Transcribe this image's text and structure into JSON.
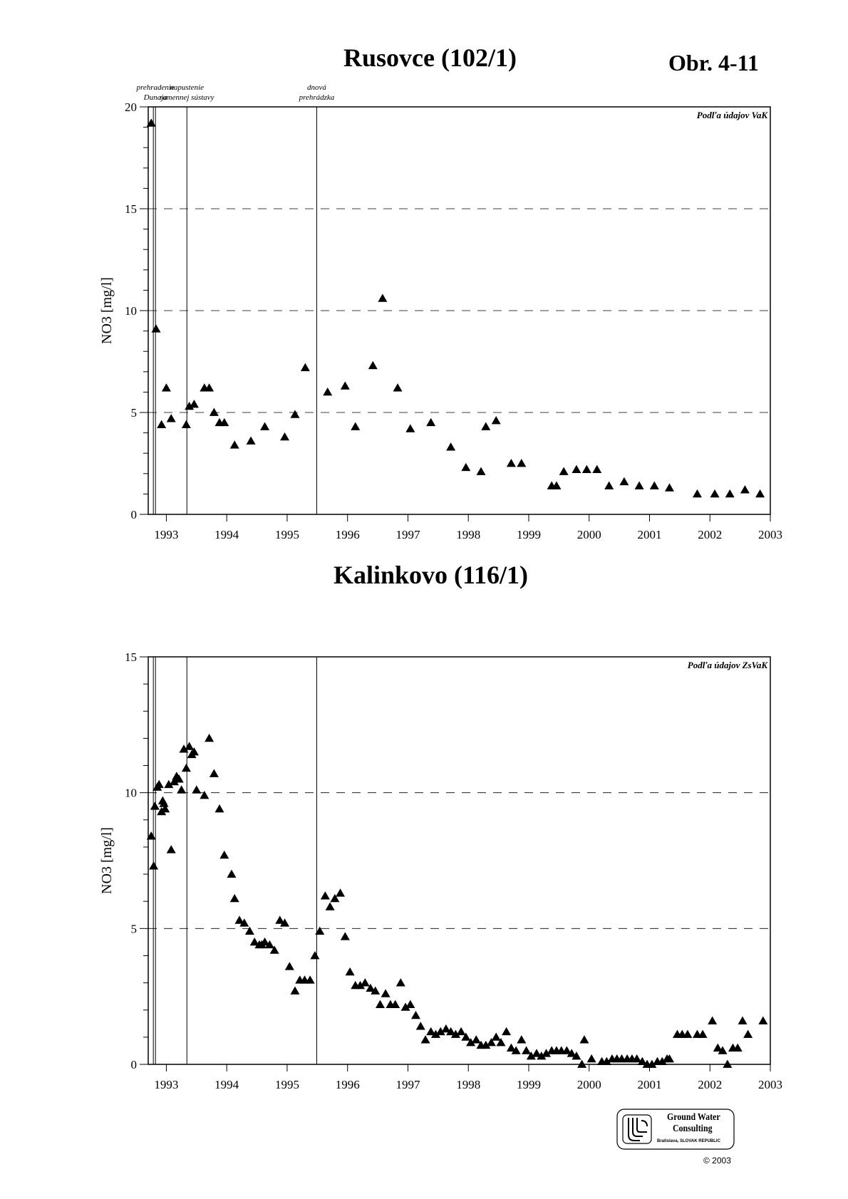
{
  "figure_label": "Obr. 4-11",
  "copyright": "© 2003",
  "logo": {
    "line1": "Ground Water",
    "line2": "Consulting",
    "line3": "Bratislava, SLOVAK REPUBLIC",
    "icon": "gwc-logo-icon"
  },
  "events": [
    {
      "label1": "prehradenie",
      "label2": "Dunaja",
      "x": 1992.82
    },
    {
      "label1": "napustenie",
      "label2": "ramennej sústavy",
      "x": 1993.34
    },
    {
      "label1": "dnová",
      "label2": "prehrádzka",
      "x": 1995.49
    }
  ],
  "chart_data": [
    {
      "type": "scatter",
      "title": "Rusovce (102/1)",
      "ylabel": "NO3 [mg/l]",
      "xlabel": "",
      "source_note": "Podľa údajov VaK",
      "xlim": [
        1992.7,
        2003.0
      ],
      "ylim": [
        0,
        20
      ],
      "yticks": [
        0,
        5,
        10,
        15,
        20
      ],
      "xticks": [
        1993,
        1994,
        1995,
        1996,
        1997,
        1998,
        1999,
        2000,
        2001,
        2002,
        2003
      ],
      "grid": "dashed horizontal at 5, 10, 15",
      "marker": "triangle",
      "points": [
        [
          1992.75,
          19.2
        ],
        [
          1992.83,
          9.1
        ],
        [
          1992.92,
          4.4
        ],
        [
          1993.0,
          6.2
        ],
        [
          1993.08,
          4.7
        ],
        [
          1993.33,
          4.4
        ],
        [
          1993.38,
          5.3
        ],
        [
          1993.46,
          5.4
        ],
        [
          1993.63,
          6.2
        ],
        [
          1993.71,
          6.2
        ],
        [
          1993.79,
          5.0
        ],
        [
          1993.88,
          4.5
        ],
        [
          1993.96,
          4.5
        ],
        [
          1994.13,
          3.4
        ],
        [
          1994.4,
          3.6
        ],
        [
          1994.63,
          4.3
        ],
        [
          1994.96,
          3.8
        ],
        [
          1995.13,
          4.9
        ],
        [
          1995.3,
          7.2
        ],
        [
          1995.67,
          6.0
        ],
        [
          1995.96,
          6.3
        ],
        [
          1996.13,
          4.3
        ],
        [
          1996.42,
          7.3
        ],
        [
          1996.58,
          10.6
        ],
        [
          1996.83,
          6.2
        ],
        [
          1997.04,
          4.2
        ],
        [
          1997.38,
          4.5
        ],
        [
          1997.71,
          3.3
        ],
        [
          1997.96,
          2.3
        ],
        [
          1998.21,
          2.1
        ],
        [
          1998.29,
          4.3
        ],
        [
          1998.46,
          4.6
        ],
        [
          1998.71,
          2.5
        ],
        [
          1998.88,
          2.5
        ],
        [
          1999.38,
          1.4
        ],
        [
          1999.46,
          1.4
        ],
        [
          1999.58,
          2.1
        ],
        [
          1999.79,
          2.2
        ],
        [
          1999.96,
          2.2
        ],
        [
          2000.13,
          2.2
        ],
        [
          2000.33,
          1.4
        ],
        [
          2000.58,
          1.6
        ],
        [
          2000.83,
          1.4
        ],
        [
          2001.08,
          1.4
        ],
        [
          2001.33,
          1.3
        ],
        [
          2001.79,
          1.0
        ],
        [
          2002.08,
          1.0
        ],
        [
          2002.33,
          1.0
        ],
        [
          2002.58,
          1.2
        ],
        [
          2002.83,
          1.0
        ]
      ]
    },
    {
      "type": "scatter",
      "title": "Kalinkovo (116/1)",
      "ylabel": "NO3 [mg/l]",
      "xlabel": "",
      "source_note": "Podľa údajov ZsVaK",
      "xlim": [
        1992.7,
        2003.0
      ],
      "ylim": [
        0,
        15
      ],
      "yticks": [
        0,
        5,
        10,
        15
      ],
      "xticks": [
        1993,
        1994,
        1995,
        1996,
        1997,
        1998,
        1999,
        2000,
        2001,
        2002,
        2003
      ],
      "grid": "dashed horizontal at 5, 10",
      "marker": "triangle",
      "points": [
        [
          1992.75,
          8.4
        ],
        [
          1992.79,
          7.3
        ],
        [
          1992.81,
          9.5
        ],
        [
          1992.85,
          10.2
        ],
        [
          1992.88,
          10.3
        ],
        [
          1992.92,
          9.3
        ],
        [
          1992.94,
          9.7
        ],
        [
          1992.96,
          9.6
        ],
        [
          1992.98,
          9.4
        ],
        [
          1993.04,
          10.3
        ],
        [
          1993.08,
          7.9
        ],
        [
          1993.13,
          10.4
        ],
        [
          1993.17,
          10.6
        ],
        [
          1993.21,
          10.5
        ],
        [
          1993.25,
          10.1
        ],
        [
          1993.29,
          11.6
        ],
        [
          1993.33,
          10.9
        ],
        [
          1993.38,
          11.7
        ],
        [
          1993.42,
          11.4
        ],
        [
          1993.46,
          11.5
        ],
        [
          1993.5,
          10.1
        ],
        [
          1993.63,
          9.9
        ],
        [
          1993.71,
          12.0
        ],
        [
          1993.79,
          10.7
        ],
        [
          1993.88,
          9.4
        ],
        [
          1993.96,
          7.7
        ],
        [
          1994.08,
          7.0
        ],
        [
          1994.13,
          6.1
        ],
        [
          1994.21,
          5.3
        ],
        [
          1994.29,
          5.2
        ],
        [
          1994.38,
          4.9
        ],
        [
          1994.46,
          4.5
        ],
        [
          1994.54,
          4.4
        ],
        [
          1994.58,
          4.4
        ],
        [
          1994.63,
          4.5
        ],
        [
          1994.71,
          4.4
        ],
        [
          1994.79,
          4.2
        ],
        [
          1994.88,
          5.3
        ],
        [
          1994.96,
          5.2
        ],
        [
          1995.04,
          3.6
        ],
        [
          1995.13,
          2.7
        ],
        [
          1995.21,
          3.1
        ],
        [
          1995.29,
          3.1
        ],
        [
          1995.38,
          3.1
        ],
        [
          1995.46,
          4.0
        ],
        [
          1995.54,
          4.9
        ],
        [
          1995.63,
          6.2
        ],
        [
          1995.71,
          5.8
        ],
        [
          1995.79,
          6.1
        ],
        [
          1995.88,
          6.3
        ],
        [
          1995.96,
          4.7
        ],
        [
          1996.04,
          3.4
        ],
        [
          1996.13,
          2.9
        ],
        [
          1996.21,
          2.9
        ],
        [
          1996.29,
          3.0
        ],
        [
          1996.38,
          2.8
        ],
        [
          1996.46,
          2.7
        ],
        [
          1996.54,
          2.2
        ],
        [
          1996.63,
          2.6
        ],
        [
          1996.71,
          2.2
        ],
        [
          1996.79,
          2.2
        ],
        [
          1996.88,
          3.0
        ],
        [
          1996.96,
          2.1
        ],
        [
          1997.04,
          2.2
        ],
        [
          1997.13,
          1.8
        ],
        [
          1997.21,
          1.4
        ],
        [
          1997.29,
          0.9
        ],
        [
          1997.38,
          1.2
        ],
        [
          1997.46,
          1.1
        ],
        [
          1997.54,
          1.2
        ],
        [
          1997.63,
          1.3
        ],
        [
          1997.71,
          1.2
        ],
        [
          1997.79,
          1.1
        ],
        [
          1997.88,
          1.2
        ],
        [
          1997.96,
          1.0
        ],
        [
          1998.04,
          0.8
        ],
        [
          1998.13,
          0.9
        ],
        [
          1998.21,
          0.7
        ],
        [
          1998.29,
          0.7
        ],
        [
          1998.38,
          0.8
        ],
        [
          1998.46,
          1.0
        ],
        [
          1998.54,
          0.8
        ],
        [
          1998.63,
          1.2
        ],
        [
          1998.71,
          0.6
        ],
        [
          1998.79,
          0.5
        ],
        [
          1998.88,
          0.9
        ],
        [
          1998.96,
          0.5
        ],
        [
          1999.04,
          0.3
        ],
        [
          1999.13,
          0.4
        ],
        [
          1999.21,
          0.3
        ],
        [
          1999.29,
          0.4
        ],
        [
          1999.38,
          0.5
        ],
        [
          1999.46,
          0.5
        ],
        [
          1999.54,
          0.5
        ],
        [
          1999.63,
          0.5
        ],
        [
          1999.71,
          0.4
        ],
        [
          1999.79,
          0.3
        ],
        [
          1999.88,
          0.0
        ],
        [
          1999.92,
          0.9
        ],
        [
          2000.04,
          0.2
        ],
        [
          2000.21,
          0.1
        ],
        [
          2000.29,
          0.1
        ],
        [
          2000.38,
          0.2
        ],
        [
          2000.46,
          0.2
        ],
        [
          2000.54,
          0.2
        ],
        [
          2000.63,
          0.2
        ],
        [
          2000.71,
          0.2
        ],
        [
          2000.79,
          0.2
        ],
        [
          2000.88,
          0.1
        ],
        [
          2000.96,
          0.0
        ],
        [
          2001.04,
          0.0
        ],
        [
          2001.13,
          0.1
        ],
        [
          2001.21,
          0.1
        ],
        [
          2001.29,
          0.2
        ],
        [
          2001.33,
          0.2
        ],
        [
          2001.46,
          1.1
        ],
        [
          2001.54,
          1.1
        ],
        [
          2001.63,
          1.1
        ],
        [
          2001.79,
          1.1
        ],
        [
          2001.88,
          1.1
        ],
        [
          2002.04,
          1.6
        ],
        [
          2002.13,
          0.6
        ],
        [
          2002.21,
          0.5
        ],
        [
          2002.29,
          0.0
        ],
        [
          2002.38,
          0.6
        ],
        [
          2002.46,
          0.6
        ],
        [
          2002.54,
          1.6
        ],
        [
          2002.63,
          1.1
        ],
        [
          2002.88,
          1.6
        ]
      ]
    }
  ]
}
